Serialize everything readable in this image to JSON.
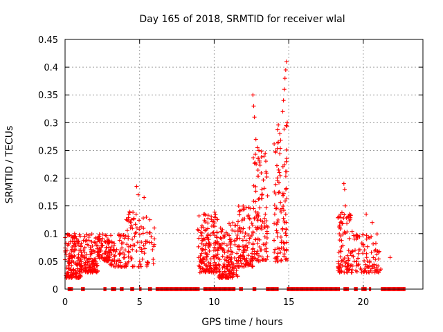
{
  "chart_data": {
    "type": "scatter",
    "title": "Day 165 of 2018, SRMTID for receiver wlal",
    "xlabel": "GPS time / hours",
    "ylabel": "SRMTID / TECUs",
    "xlim": [
      0,
      24
    ],
    "ylim": [
      0,
      0.45
    ],
    "x_ticks": [
      0,
      5,
      10,
      15,
      20
    ],
    "x_tick_labels": [
      "0",
      "5",
      "10",
      "15",
      "20"
    ],
    "y_ticks": [
      0,
      0.05,
      0.1,
      0.15,
      0.2,
      0.25,
      0.3,
      0.35,
      0.4,
      0.45
    ],
    "y_tick_labels": [
      "0",
      "0.05",
      "0.1",
      "0.15",
      "0.2",
      "0.25",
      "0.3",
      "0.35",
      "0.4",
      "0.45"
    ],
    "grid": true,
    "marker": "+",
    "color": "#ff0000",
    "clusters": [
      {
        "x_range": [
          0.0,
          1.1
        ],
        "y_range": [
          0.02,
          0.1
        ],
        "count": 160
      },
      {
        "x_range": [
          1.1,
          2.2
        ],
        "y_range": [
          0.03,
          0.1
        ],
        "count": 120
      },
      {
        "x_range": [
          2.2,
          3.0
        ],
        "y_range": [
          0.05,
          0.1
        ],
        "count": 70
      },
      {
        "x_range": [
          3.0,
          4.0
        ],
        "y_range": [
          0.04,
          0.1
        ],
        "count": 60
      },
      {
        "x_range": [
          4.0,
          5.0
        ],
        "y_range": [
          0.04,
          0.14
        ],
        "count": 55
      },
      {
        "x_range": [
          5.0,
          6.0
        ],
        "y_range": [
          0.04,
          0.13
        ],
        "count": 40
      },
      {
        "x_range": [
          8.9,
          10.3
        ],
        "y_range": [
          0.03,
          0.14
        ],
        "count": 170
      },
      {
        "x_range": [
          10.3,
          11.6
        ],
        "y_range": [
          0.02,
          0.12
        ],
        "count": 150
      },
      {
        "x_range": [
          11.6,
          12.6
        ],
        "y_range": [
          0.04,
          0.15
        ],
        "count": 100
      },
      {
        "x_range": [
          12.6,
          13.6
        ],
        "y_range": [
          0.05,
          0.25
        ],
        "count": 110
      },
      {
        "x_range": [
          14.0,
          14.9
        ],
        "y_range": [
          0.05,
          0.3
        ],
        "count": 100
      },
      {
        "x_range": [
          18.3,
          19.3
        ],
        "y_range": [
          0.03,
          0.14
        ],
        "count": 95
      },
      {
        "x_range": [
          19.3,
          21.2
        ],
        "y_range": [
          0.03,
          0.1
        ],
        "count": 90
      }
    ],
    "outliers": [
      {
        "x": 4.8,
        "y": 0.185
      },
      {
        "x": 4.9,
        "y": 0.17
      },
      {
        "x": 5.3,
        "y": 0.165
      },
      {
        "x": 12.6,
        "y": 0.35
      },
      {
        "x": 12.65,
        "y": 0.33
      },
      {
        "x": 12.7,
        "y": 0.31
      },
      {
        "x": 12.8,
        "y": 0.27
      },
      {
        "x": 12.9,
        "y": 0.255
      },
      {
        "x": 13.0,
        "y": 0.25
      },
      {
        "x": 14.85,
        "y": 0.41
      },
      {
        "x": 14.8,
        "y": 0.395
      },
      {
        "x": 14.75,
        "y": 0.38
      },
      {
        "x": 14.7,
        "y": 0.36
      },
      {
        "x": 14.65,
        "y": 0.34
      },
      {
        "x": 14.6,
        "y": 0.32
      },
      {
        "x": 14.9,
        "y": 0.3
      },
      {
        "x": 14.4,
        "y": 0.28
      },
      {
        "x": 14.3,
        "y": 0.265
      },
      {
        "x": 18.7,
        "y": 0.19
      },
      {
        "x": 18.75,
        "y": 0.18
      },
      {
        "x": 18.8,
        "y": 0.15
      },
      {
        "x": 20.2,
        "y": 0.135
      },
      {
        "x": 20.6,
        "y": 0.12
      },
      {
        "x": 21.8,
        "y": 0.057
      }
    ],
    "zero_segments": [
      [
        0.2,
        0.5
      ],
      [
        1.1,
        1.3
      ],
      [
        2.6,
        2.75
      ],
      [
        3.1,
        3.4
      ],
      [
        3.7,
        3.9
      ],
      [
        4.4,
        4.6
      ],
      [
        5.0,
        5.1
      ],
      [
        5.6,
        5.8
      ],
      [
        6.1,
        9.0
      ],
      [
        9.3,
        11.4
      ],
      [
        11.7,
        11.9
      ],
      [
        12.6,
        12.8
      ],
      [
        13.5,
        14.3
      ],
      [
        14.9,
        18.4
      ],
      [
        18.7,
        19.0
      ],
      [
        19.4,
        19.6
      ],
      [
        19.9,
        20.2
      ],
      [
        20.4,
        20.5
      ],
      [
        21.2,
        22.8
      ]
    ]
  }
}
